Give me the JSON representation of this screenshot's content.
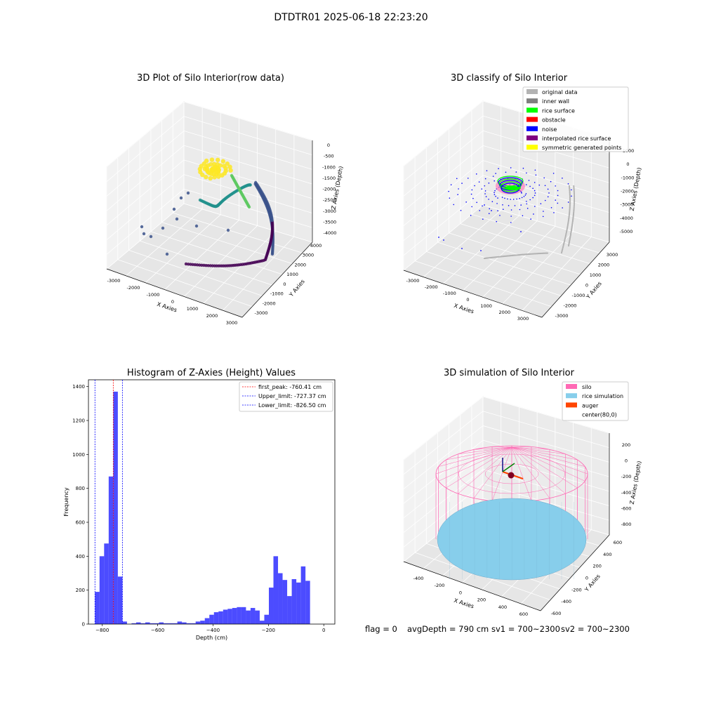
{
  "figure": {
    "suptitle": "DTDTR01 2025-06-18 22:23:20",
    "status": {
      "flag": "flag = 0",
      "avg_depth": "avgDepth = 790 cm",
      "sv1": "sv1 = 700~2300",
      "sv2": "sv2 = 700~2300"
    }
  },
  "chart_data": [
    {
      "type": "scatter",
      "projection": "3d",
      "title": "3D Plot of Silo Interior(row data)",
      "xlabel": "X Axies",
      "ylabel": "Y Axies",
      "zlabel": "Z Axies (Depth)",
      "x_ticks": [
        "-3000",
        "-2000",
        "-1000",
        "0",
        "1000",
        "2000",
        "3000"
      ],
      "y_ticks": [
        "-3000",
        "-2000",
        "-1000",
        "0",
        "1000",
        "2000",
        "3000",
        "4000"
      ],
      "z_ticks": [
        "-4000",
        "-3500",
        "-3000",
        "-2500",
        "-2000",
        "-1500",
        "-1000",
        "-500",
        "0"
      ],
      "colormap": "viridis (colored by depth)",
      "colors": [
        "#440154",
        "#3b528b",
        "#21918c",
        "#5ec962",
        "#fde725"
      ]
    },
    {
      "type": "scatter",
      "projection": "3d",
      "title": "3D classify of Silo Interior",
      "xlabel": "X Axies",
      "ylabel": "Y Axies",
      "zlabel": "Z Axies (Depth)",
      "x_ticks": [
        "-3000",
        "-2000",
        "-1000",
        "0",
        "1000",
        "2000",
        "3000"
      ],
      "y_ticks": [
        "-3000",
        "-2000",
        "-1000",
        "0",
        "1000",
        "2000",
        "3000"
      ],
      "z_ticks": [
        "-5000",
        "-4000",
        "-3000",
        "-2000",
        "-1000",
        "0",
        "1000"
      ],
      "legend": [
        {
          "label": "original data",
          "color": "#b3b3b3"
        },
        {
          "label": "inner wall",
          "color": "#808080"
        },
        {
          "label": "rice surface",
          "color": "#00ff00"
        },
        {
          "label": "obstacle",
          "color": "#ff0000"
        },
        {
          "label": "noise",
          "color": "#0000ff"
        },
        {
          "label": "interpolated rice surface",
          "color": "#800080"
        },
        {
          "label": "symmetric generated points",
          "color": "#ffff00"
        }
      ],
      "legend_position": "upper right"
    },
    {
      "type": "bar",
      "title": "Histogram of Z-Axies (Height) Values",
      "xlabel": "Depth (cm)",
      "ylabel": "Frequency",
      "xlim": [
        -850,
        40
      ],
      "ylim": [
        0,
        1440
      ],
      "x_ticks": [
        -800,
        -600,
        -400,
        -200,
        0
      ],
      "y_ticks": [
        0,
        200,
        400,
        600,
        800,
        1000,
        1200,
        1400
      ],
      "bar_color": "#0000ff",
      "bin_start": -826.5,
      "bin_width": 16.53,
      "values": [
        190,
        400,
        475,
        870,
        1370,
        280,
        15,
        0,
        5,
        10,
        5,
        10,
        5,
        5,
        10,
        5,
        5,
        5,
        15,
        10,
        5,
        5,
        15,
        20,
        35,
        55,
        70,
        75,
        85,
        90,
        95,
        100,
        100,
        80,
        95,
        80,
        20,
        55,
        215,
        400,
        300,
        260,
        165,
        265,
        245,
        340,
        255
      ],
      "lines": [
        {
          "label": "first_peak: -760.41 cm",
          "value": -760.41,
          "color": "#ff0000"
        },
        {
          "label": "Upper_limit: -727.37 cm",
          "value": -727.37,
          "color": "#0000ff"
        },
        {
          "label": "Lower_limit: -826.50 cm",
          "value": -826.5,
          "color": "#0000ff"
        }
      ],
      "legend_position": "upper right"
    },
    {
      "type": "scatter",
      "projection": "3d",
      "title": "3D simulation of Silo Interior",
      "xlabel": "X Axies",
      "ylabel": "Y Axies",
      "zlabel": "Z Axies (Depth)",
      "x_ticks": [
        "-400",
        "-200",
        "0",
        "200",
        "400",
        "600"
      ],
      "y_ticks": [
        "-600",
        "-400",
        "-200",
        "0",
        "200",
        "400",
        "600"
      ],
      "z_ticks": [
        "-800",
        "-600",
        "-400",
        "-200",
        "0",
        "200"
      ],
      "legend": [
        {
          "label": "silo",
          "color": "#ff69b4"
        },
        {
          "label": "rice simulation",
          "color": "#87ceeb"
        },
        {
          "label": "auger",
          "color": "#ff4500"
        },
        {
          "label": "center(80,0)",
          "color": "#ffffff"
        }
      ],
      "legend_position": "upper right"
    }
  ]
}
